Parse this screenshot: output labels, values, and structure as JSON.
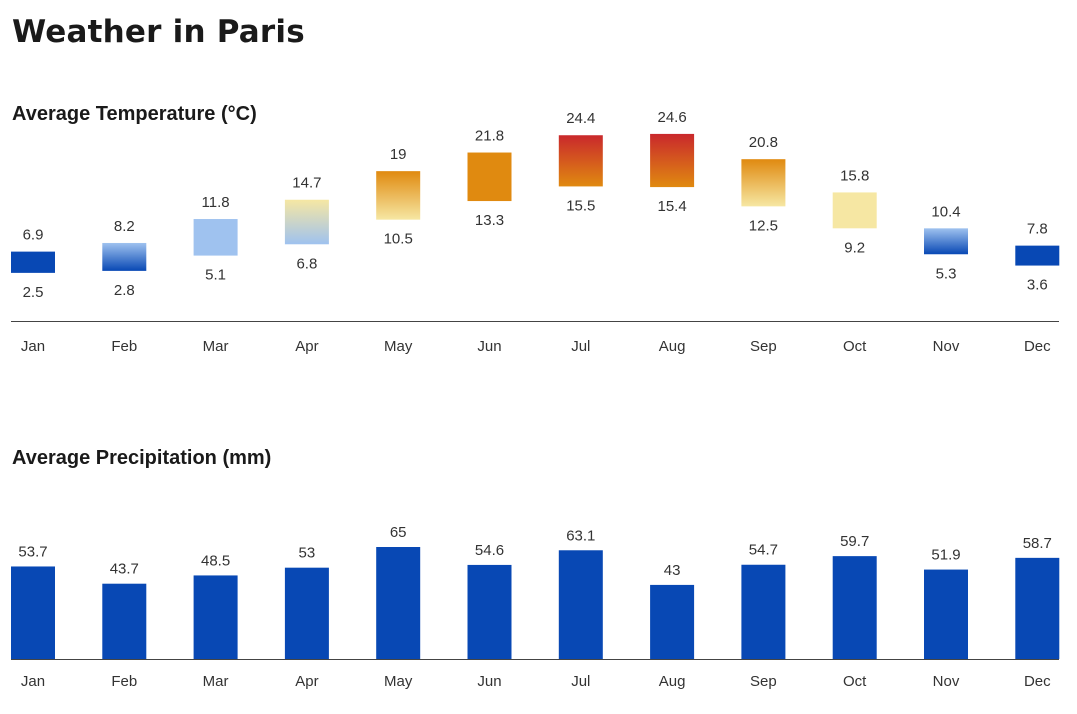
{
  "page": {
    "title": "Weather in Paris"
  },
  "colors": {
    "precip_bar": "#0848b4",
    "axis": "#444444",
    "temp_cold": "#0848b4",
    "temp_cool": "#9fc2ef",
    "temp_mild": "#f6e7a3",
    "temp_warm": "#e08a10",
    "temp_hot": "#c9282c"
  },
  "chart_data": [
    {
      "type": "bar",
      "title": "Average Temperature (°C)",
      "categories": [
        "Jan",
        "Feb",
        "Mar",
        "Apr",
        "May",
        "Jun",
        "Jul",
        "Aug",
        "Sep",
        "Oct",
        "Nov",
        "Dec"
      ],
      "series": [
        {
          "name": "",
          "values": [
            6.9,
            8.2,
            11.8,
            14.7,
            19,
            21.8,
            24.4,
            24.6,
            20.8,
            15.8,
            10.4,
            7.8
          ]
        },
        {
          "name": "",
          "values": [
            2.5,
            2.8,
            5.1,
            6.8,
            10.5,
            13.3,
            15.5,
            15.4,
            12.5,
            9.2,
            5.3,
            3.6
          ]
        }
      ],
      "xlabel": "",
      "ylabel": "",
      "grid": false
    },
    {
      "type": "bar",
      "title": "Average Precipitation (mm)",
      "categories": [
        "Jan",
        "Feb",
        "Mar",
        "Apr",
        "May",
        "Jun",
        "Jul",
        "Aug",
        "Sep",
        "Oct",
        "Nov",
        "Dec"
      ],
      "values": [
        53.7,
        43.7,
        48.5,
        53,
        65,
        54.6,
        63.1,
        43,
        54.7,
        59.7,
        51.9,
        58.7
      ],
      "xlabel": "",
      "ylabel": "",
      "ylim": [
        0,
        65
      ],
      "grid": false
    }
  ]
}
